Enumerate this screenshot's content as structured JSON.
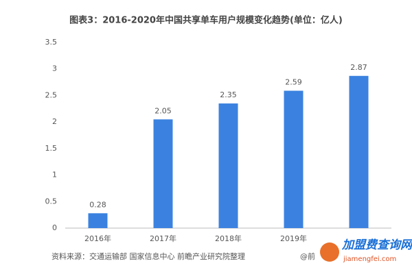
{
  "chart_data": {
    "type": "bar",
    "title": "图表3：2016-2020年中国共享单车用户规模变化趋势(单位：亿人)",
    "categories": [
      "2016年",
      "2017年",
      "2018年",
      "2019年",
      null
    ],
    "values": [
      0.28,
      2.05,
      2.35,
      2.59,
      2.87
    ],
    "color": "#3b82e0",
    "ylim": [
      0,
      3.5
    ],
    "yticks": [
      0,
      0.5,
      1,
      1.5,
      2,
      2.5,
      3,
      3.5
    ],
    "grid": false,
    "source": "资料来源：交通运输部 国家信息中心 前瞻产业研究院整理",
    "credit": "@前",
    "watermark": {
      "title": "加盟费查询网",
      "url": "jiamengfei.com"
    }
  }
}
